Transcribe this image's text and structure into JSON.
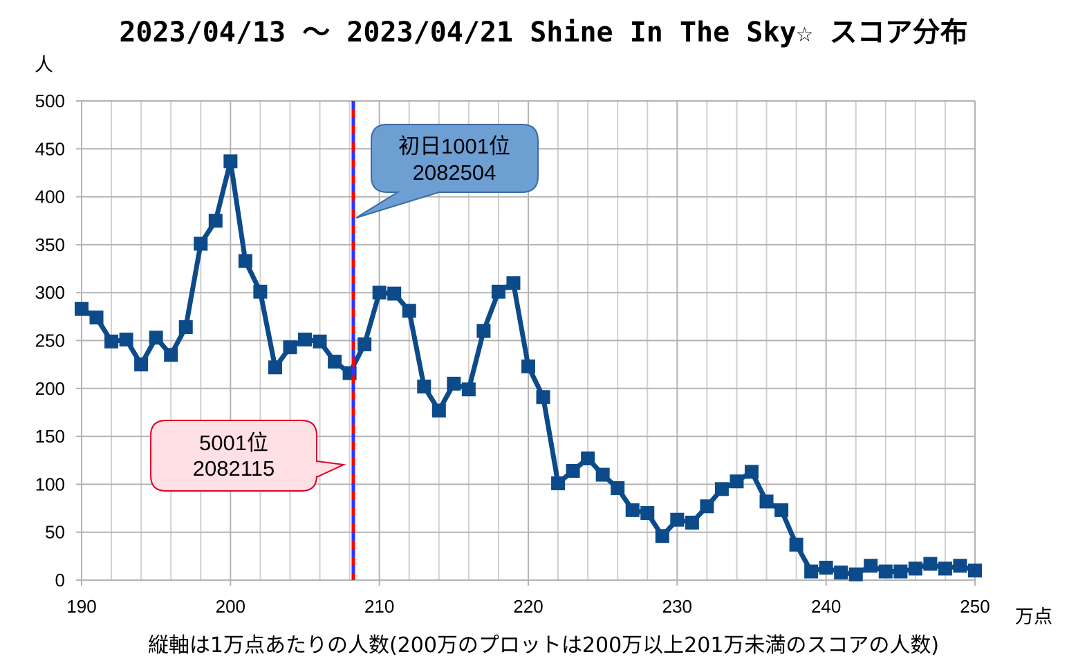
{
  "page": {
    "title": "2023/04/13 〜 2023/04/21 Shine In The Sky☆ スコア分布",
    "y_unit": "人",
    "x_unit": "万点",
    "footnote": "縦軸は1万点あたりの人数(200万のプロットは200万以上201万未満のスコアの人数)"
  },
  "chart_data": {
    "type": "line",
    "title": "2023/04/13 〜 2023/04/21 Shine In The Sky☆ スコア分布",
    "xlabel": "万点",
    "ylabel": "人",
    "xlim": [
      190,
      250
    ],
    "ylim": [
      0,
      500
    ],
    "x_ticks": [
      190,
      200,
      210,
      220,
      230,
      240,
      250
    ],
    "y_ticks": [
      0,
      50,
      100,
      150,
      200,
      250,
      300,
      350,
      400,
      450,
      500
    ],
    "grid": true,
    "series": [
      {
        "color": "#0c4a8a",
        "marker": "square",
        "x": [
          190,
          191,
          192,
          193,
          194,
          195,
          196,
          197,
          198,
          199,
          200,
          201,
          202,
          203,
          204,
          205,
          206,
          207,
          208,
          209,
          210,
          211,
          212,
          213,
          214,
          215,
          216,
          217,
          218,
          219,
          220,
          221,
          222,
          223,
          224,
          225,
          226,
          227,
          228,
          229,
          230,
          231,
          232,
          233,
          234,
          235,
          236,
          237,
          238,
          239,
          240,
          241,
          242,
          243,
          244,
          245,
          246,
          247,
          248,
          249,
          250
        ],
        "y": [
          283,
          274,
          249,
          251,
          225,
          253,
          235,
          264,
          351,
          375,
          437,
          333,
          301,
          222,
          243,
          251,
          249,
          228,
          216,
          246,
          300,
          299,
          281,
          202,
          177,
          205,
          199,
          260,
          301,
          310,
          223,
          191,
          101,
          114,
          127,
          110,
          96,
          73,
          70,
          46,
          63,
          60,
          77,
          95,
          103,
          113,
          82,
          73,
          37,
          9,
          13,
          8,
          6,
          15,
          9,
          9,
          12,
          17,
          12,
          15,
          10
        ]
      }
    ],
    "reference_lines": [
      {
        "x": 208.25,
        "colors": [
          "#ff0000",
          "#3333ff"
        ],
        "style": "dashed"
      }
    ],
    "annotations": [
      {
        "line1": "初日1001位",
        "line2": "2082504",
        "fill": "#6d9fd3",
        "stroke": "#3a6aa8"
      },
      {
        "line1": "5001位",
        "line2": "2082115",
        "fill": "#ffe0e5",
        "stroke": "#e0002a"
      }
    ]
  }
}
